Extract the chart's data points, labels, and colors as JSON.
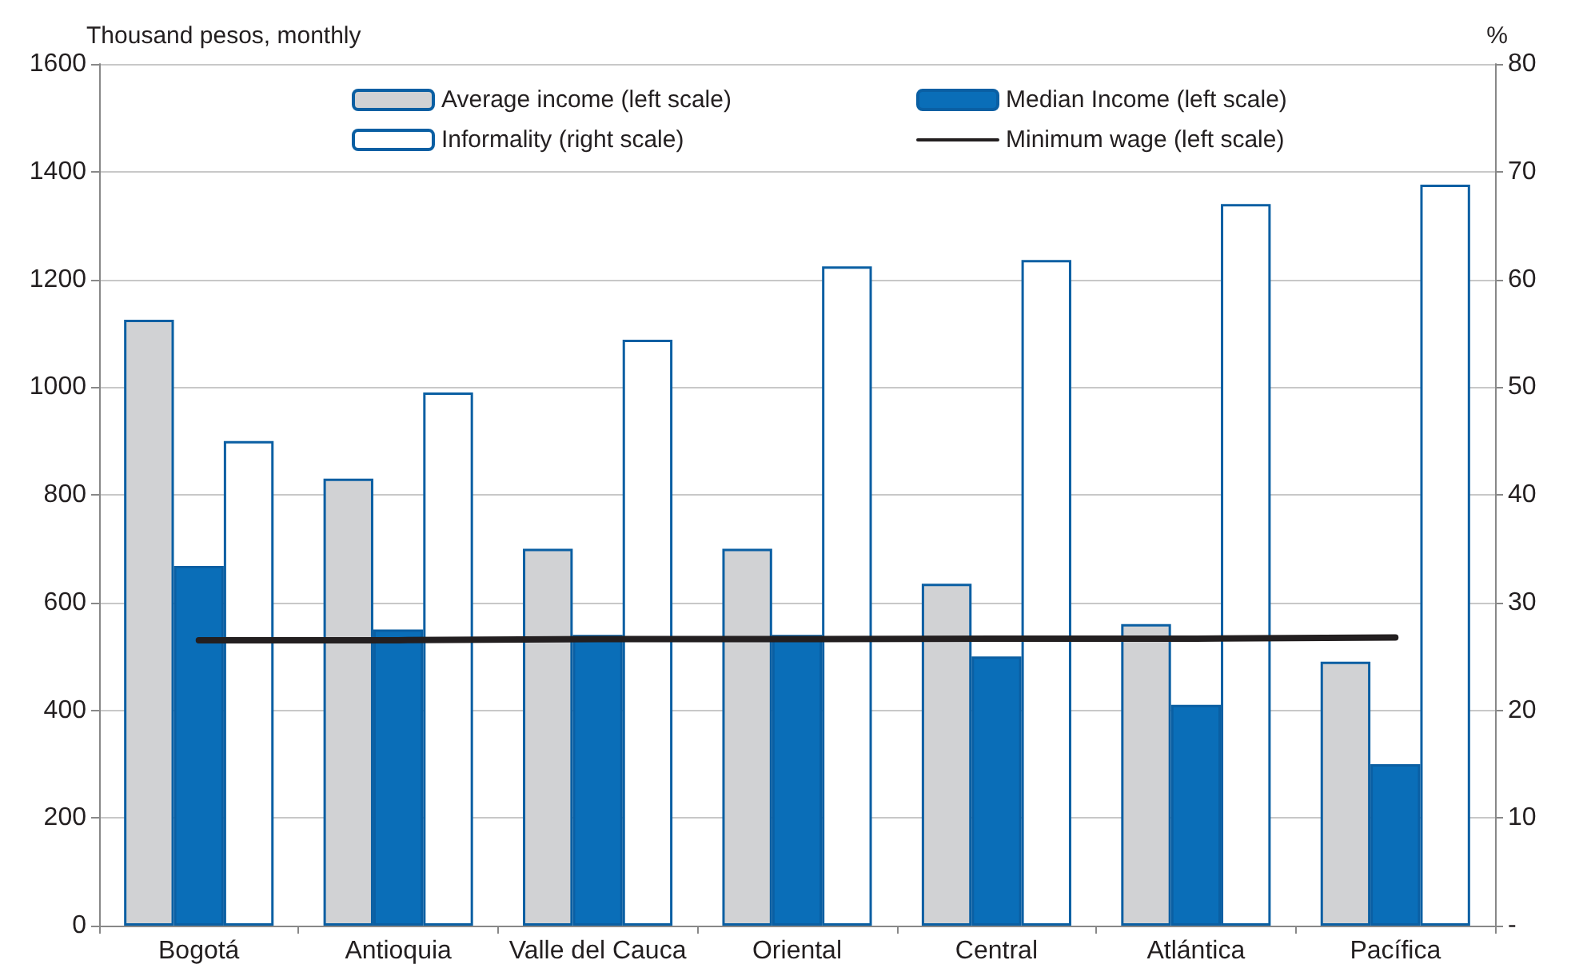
{
  "chart_data": {
    "type": "bar",
    "ylabel": "Thousand pesos, monthly",
    "y2label": "%",
    "categories": [
      "Bogotá",
      "Antioquia",
      "Valle del Cauca",
      "Oriental",
      "Central",
      "Atlántica",
      "Pacífica"
    ],
    "series": [
      {
        "name": "Average income (left scale)",
        "color": "#d1d2d4",
        "values": [
          1125,
          830,
          700,
          700,
          635,
          560,
          490
        ]
      },
      {
        "name": "Median Income (left scale)",
        "color": "#0a6eb8",
        "values": [
          668,
          550,
          540,
          540,
          500,
          410,
          300
        ]
      },
      {
        "name": "Informality (right scale)",
        "color": "#ffffff",
        "axis": "y2",
        "values": [
          45,
          49.5,
          54.4,
          61.2,
          61.8,
          67,
          68.8
        ]
      },
      {
        "name": "Minimum wage (left scale)",
        "type": "line",
        "color": "#231f20",
        "values": [
          530,
          530,
          532,
          532,
          533,
          533,
          535
        ]
      }
    ],
    "ylim": [
      0,
      1600
    ],
    "yticks": [
      0,
      200,
      400,
      600,
      800,
      1000,
      1200,
      1400,
      1600
    ],
    "y2lim": [
      0,
      80
    ],
    "y2ticks": [
      {
        "value": 0,
        "label": "-"
      },
      10,
      20,
      30,
      40,
      50,
      60,
      70,
      80
    ],
    "grid": "y",
    "legend": "top",
    "marker": "none"
  }
}
